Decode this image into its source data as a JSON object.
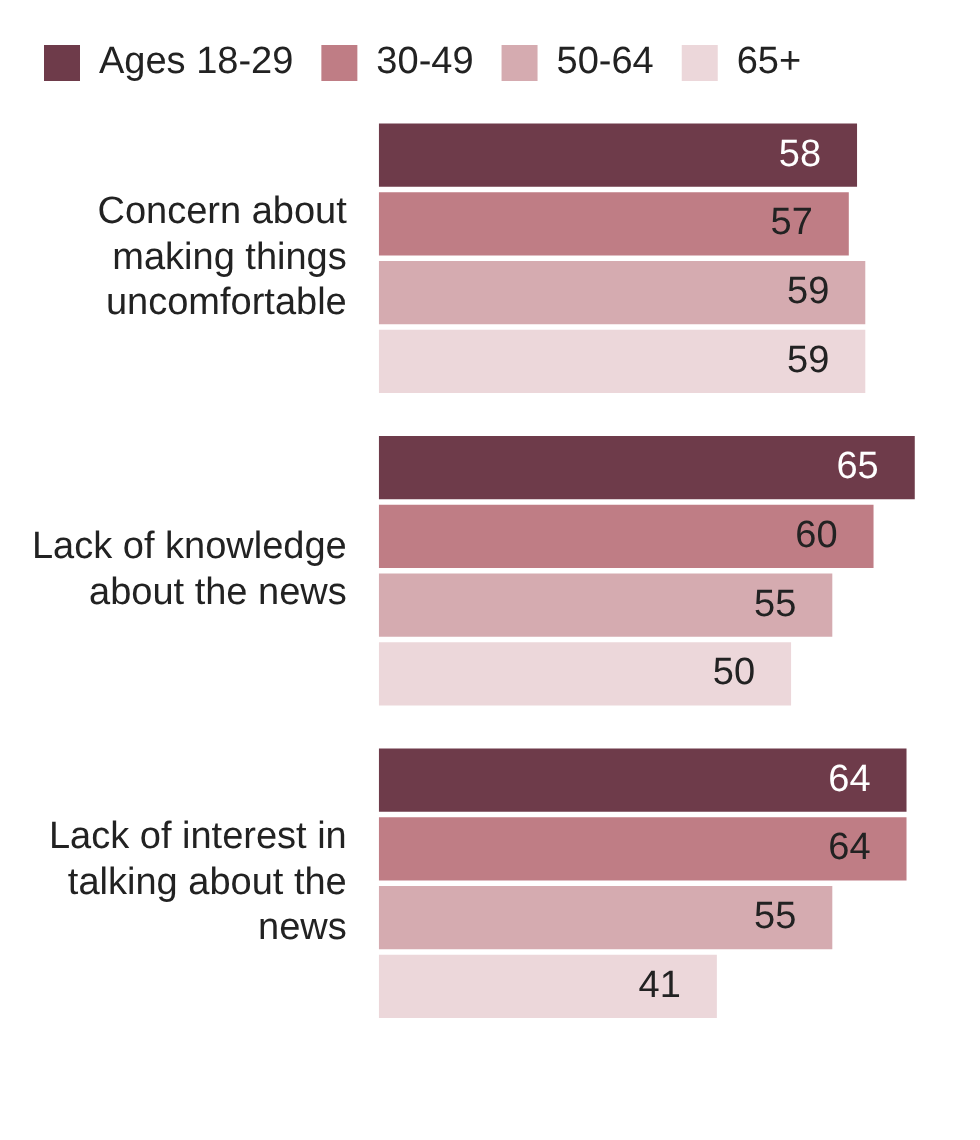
{
  "chart_data": {
    "type": "bar",
    "orientation": "horizontal",
    "categories": [
      "Concern about making things uncomfortable",
      "Lack of knowledge about the news",
      "Lack of interest in talking about the news"
    ],
    "series": [
      {
        "name": "Ages 18-29",
        "color": "#6e3b4a",
        "values": [
          58,
          65,
          64
        ]
      },
      {
        "name": "30-49",
        "color": "#bf7d85",
        "values": [
          57,
          60,
          64
        ]
      },
      {
        "name": "50-64",
        "color": "#d5abb0",
        "values": [
          59,
          55,
          55
        ]
      },
      {
        "name": "65+",
        "color": "#ecd7da",
        "values": [
          59,
          50,
          41
        ]
      }
    ],
    "data_labels": true,
    "legend": "top",
    "tick_labels": "y"
  }
}
